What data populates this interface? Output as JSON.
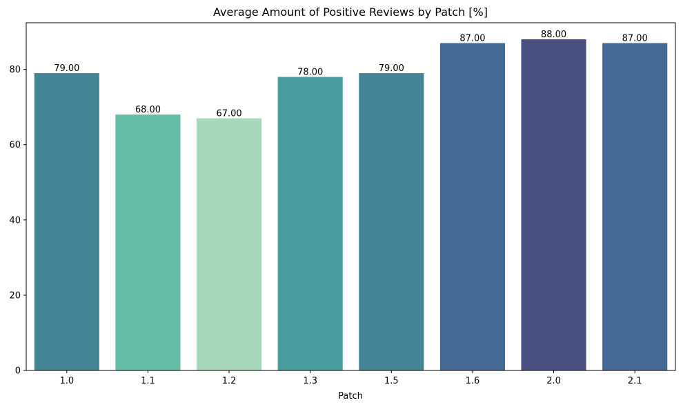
{
  "chart_data": {
    "type": "bar",
    "title": "Average Amount of Positive Reviews by Patch [%]",
    "xlabel": "Patch",
    "ylabel": "",
    "categories": [
      "1.0",
      "1.1",
      "1.2",
      "1.3",
      "1.5",
      "1.6",
      "2.0",
      "2.1"
    ],
    "values": [
      79,
      68,
      67,
      78,
      79,
      87,
      88,
      87
    ],
    "data_labels": [
      "79.00",
      "68.00",
      "67.00",
      "78.00",
      "79.00",
      "87.00",
      "88.00",
      "87.00"
    ],
    "colors": [
      "#438495",
      "#64bba6",
      "#a8d8bb",
      "#499d9f",
      "#438495",
      "#446a93",
      "#4a4f82",
      "#446a93"
    ],
    "ylim": [
      0,
      92.4
    ],
    "yticks": [
      0,
      20,
      40,
      60,
      80
    ],
    "grid": false,
    "legend": "none"
  }
}
